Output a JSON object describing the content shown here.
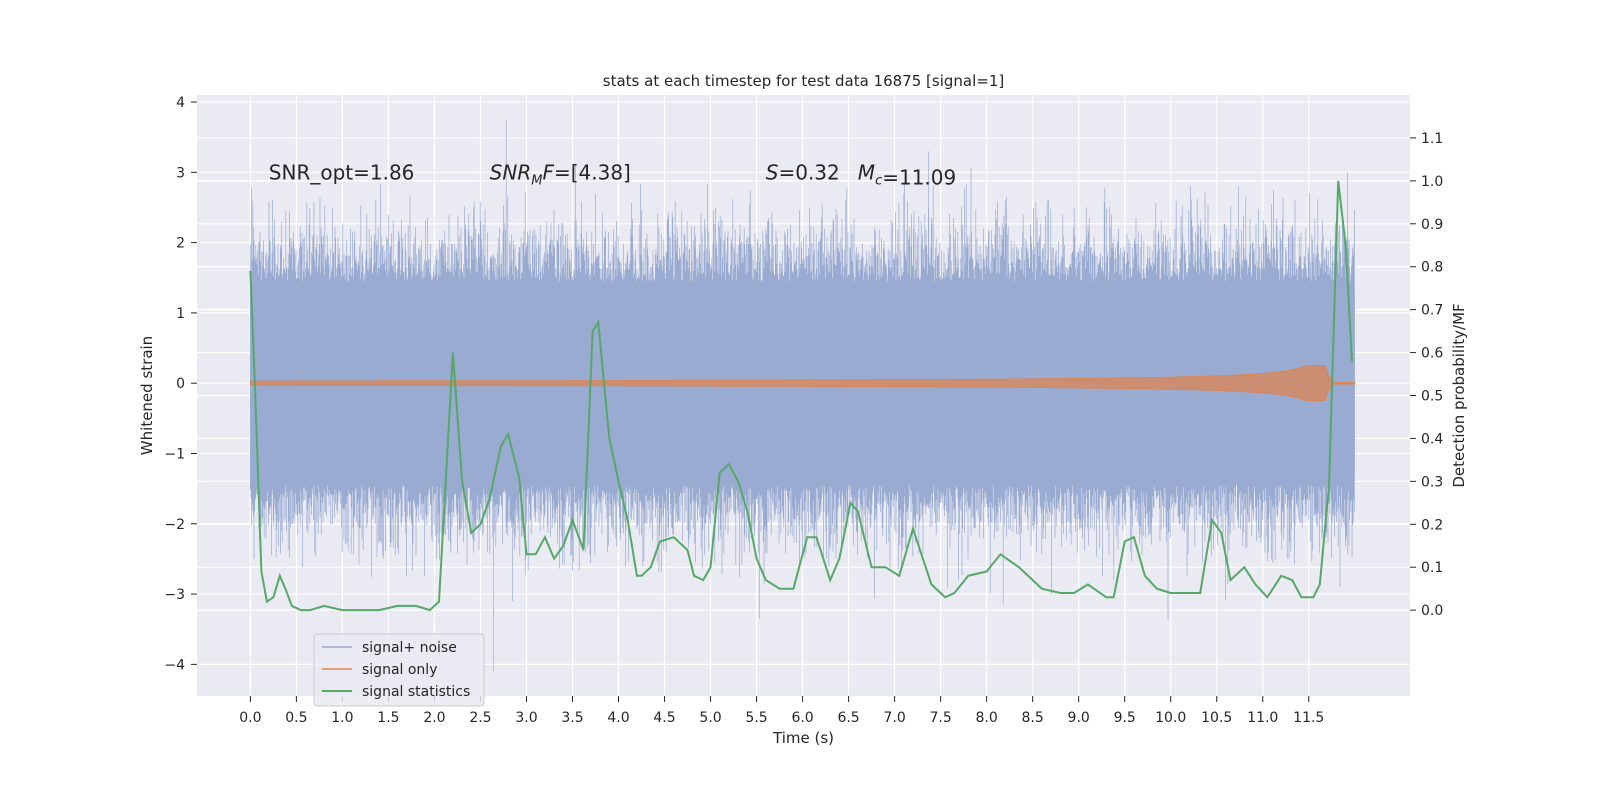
{
  "chart_data": {
    "type": "line",
    "title": "stats at each timestep for test data 16875 [signal=1]",
    "xlabel": "Time (s)",
    "ylabel": "Whitened strain",
    "ylabel_right": "Detection probability/MF",
    "xlim": [
      -0.58,
      12.6
    ],
    "ylim": [
      -4.45,
      4.1
    ],
    "ylim_right": [
      -0.2,
      1.2
    ],
    "x_ticks": [
      0.0,
      0.5,
      1.0,
      1.5,
      2.0,
      2.5,
      3.0,
      3.5,
      4.0,
      4.5,
      5.0,
      5.5,
      6.0,
      6.5,
      7.0,
      7.5,
      8.0,
      8.5,
      9.0,
      9.5,
      10.0,
      10.5,
      11.0,
      11.5
    ],
    "x_tick_labels": [
      "0.0",
      "0.5",
      "1.0",
      "1.5",
      "2.0",
      "2.5",
      "3.0",
      "3.5",
      "4.0",
      "4.5",
      "5.0",
      "5.5",
      "6.0",
      "6.5",
      "7.0",
      "7.5",
      "8.0",
      "8.5",
      "9.0",
      "9.5",
      "10.0",
      "10.5",
      "11.0",
      "11.5"
    ],
    "y_ticks": [
      -4,
      -3,
      -2,
      -1,
      0,
      1,
      2,
      3,
      4
    ],
    "y_tick_labels": [
      "−4",
      "−3",
      "−2",
      "−1",
      "0",
      "1",
      "2",
      "3",
      "4"
    ],
    "y_right_ticks": [
      0.0,
      0.1,
      0.2,
      0.3,
      0.4,
      0.5,
      0.6,
      0.7,
      0.8,
      0.9,
      1.0,
      1.1
    ],
    "y_right_tick_labels": [
      "0.0",
      "0.1",
      "0.2",
      "0.3",
      "0.4",
      "0.5",
      "0.6",
      "0.7",
      "0.8",
      "0.9",
      "1.0",
      "1.1"
    ],
    "grid": true,
    "legend_position": "lower-left",
    "colors": {
      "background": "#eaeaf2",
      "grid": "#ffffff",
      "noise": "#99abd1",
      "signal": "#dd8452",
      "stats": "#55a868",
      "text": "#262626"
    },
    "annotations": [
      {
        "text": "SNR_opt=1.86",
        "x": 0.2,
        "y": 3.0
      },
      {
        "text": "SNR_MF=[4.38]",
        "x": 2.6,
        "y": 3.0,
        "math": "snr_mf",
        "value": "=[4.38]"
      },
      {
        "text": "S=0.32",
        "x": 5.6,
        "y": 3.0,
        "math": "s",
        "value": "=0.32"
      },
      {
        "text": "M_c=11.09",
        "x": 6.6,
        "y": 3.0,
        "math": "mc",
        "value": "=11.09"
      }
    ],
    "series": [
      {
        "name": "signal+ noise",
        "kind": "noise_band",
        "x_range": [
          0.0,
          12.0
        ],
        "core_range": [
          -1.3,
          1.3
        ],
        "peak_range": [
          -4.1,
          3.75
        ],
        "extremes": [
          {
            "x": 2.78,
            "y": 3.75
          },
          {
            "x": 3.53,
            "y": 3.1
          },
          {
            "x": 7.37,
            "y": 3.3
          },
          {
            "x": 11.92,
            "y": 3.0
          },
          {
            "x": 2.64,
            "y": -4.1
          },
          {
            "x": 5.53,
            "y": -3.35
          },
          {
            "x": 9.97,
            "y": -3.37
          },
          {
            "x": 2.85,
            "y": -3.1
          },
          {
            "x": 8.18,
            "y": -3.15
          }
        ]
      },
      {
        "name": "signal only",
        "kind": "chirp",
        "x_range": [
          0.0,
          12.0
        ],
        "merger_x": 11.68,
        "peak_amplitude": 0.25
      },
      {
        "name": "signal statistics",
        "kind": "line",
        "axis": "right",
        "x": [
          0.0,
          0.05,
          0.12,
          0.18,
          0.25,
          0.32,
          0.38,
          0.45,
          0.55,
          0.65,
          0.8,
          1.0,
          1.2,
          1.4,
          1.6,
          1.8,
          1.95,
          2.05,
          2.2,
          2.3,
          2.4,
          2.5,
          2.6,
          2.72,
          2.8,
          2.92,
          3.0,
          3.1,
          3.2,
          3.3,
          3.4,
          3.5,
          3.62,
          3.72,
          3.78,
          3.9,
          4.0,
          4.1,
          4.2,
          4.25,
          4.35,
          4.45,
          4.6,
          4.75,
          4.82,
          4.92,
          5.0,
          5.1,
          5.2,
          5.3,
          5.4,
          5.5,
          5.6,
          5.75,
          5.9,
          6.05,
          6.15,
          6.3,
          6.4,
          6.52,
          6.6,
          6.75,
          6.9,
          7.05,
          7.2,
          7.4,
          7.55,
          7.65,
          7.8,
          8.0,
          8.15,
          8.35,
          8.6,
          8.8,
          8.95,
          9.1,
          9.3,
          9.38,
          9.5,
          9.6,
          9.72,
          9.85,
          10.0,
          10.2,
          10.32,
          10.45,
          10.55,
          10.65,
          10.8,
          10.92,
          11.05,
          11.2,
          11.32,
          11.42,
          11.55,
          11.62,
          11.72,
          11.82,
          11.9,
          11.97
        ],
        "y": [
          0.79,
          0.52,
          0.09,
          0.02,
          0.03,
          0.08,
          0.05,
          0.01,
          0.0,
          0.0,
          0.01,
          0.0,
          0.0,
          0.0,
          0.01,
          0.01,
          0.0,
          0.02,
          0.6,
          0.3,
          0.18,
          0.2,
          0.26,
          0.38,
          0.41,
          0.31,
          0.13,
          0.13,
          0.17,
          0.12,
          0.15,
          0.21,
          0.14,
          0.65,
          0.67,
          0.4,
          0.3,
          0.21,
          0.08,
          0.08,
          0.1,
          0.16,
          0.17,
          0.14,
          0.08,
          0.07,
          0.1,
          0.32,
          0.34,
          0.3,
          0.23,
          0.12,
          0.07,
          0.05,
          0.05,
          0.17,
          0.17,
          0.07,
          0.12,
          0.25,
          0.23,
          0.1,
          0.1,
          0.08,
          0.19,
          0.06,
          0.03,
          0.04,
          0.08,
          0.09,
          0.13,
          0.1,
          0.05,
          0.04,
          0.04,
          0.06,
          0.03,
          0.03,
          0.16,
          0.17,
          0.08,
          0.05,
          0.04,
          0.04,
          0.04,
          0.21,
          0.18,
          0.07,
          0.1,
          0.06,
          0.03,
          0.08,
          0.07,
          0.03,
          0.03,
          0.06,
          0.29,
          1.0,
          0.85,
          0.58
        ]
      }
    ]
  }
}
